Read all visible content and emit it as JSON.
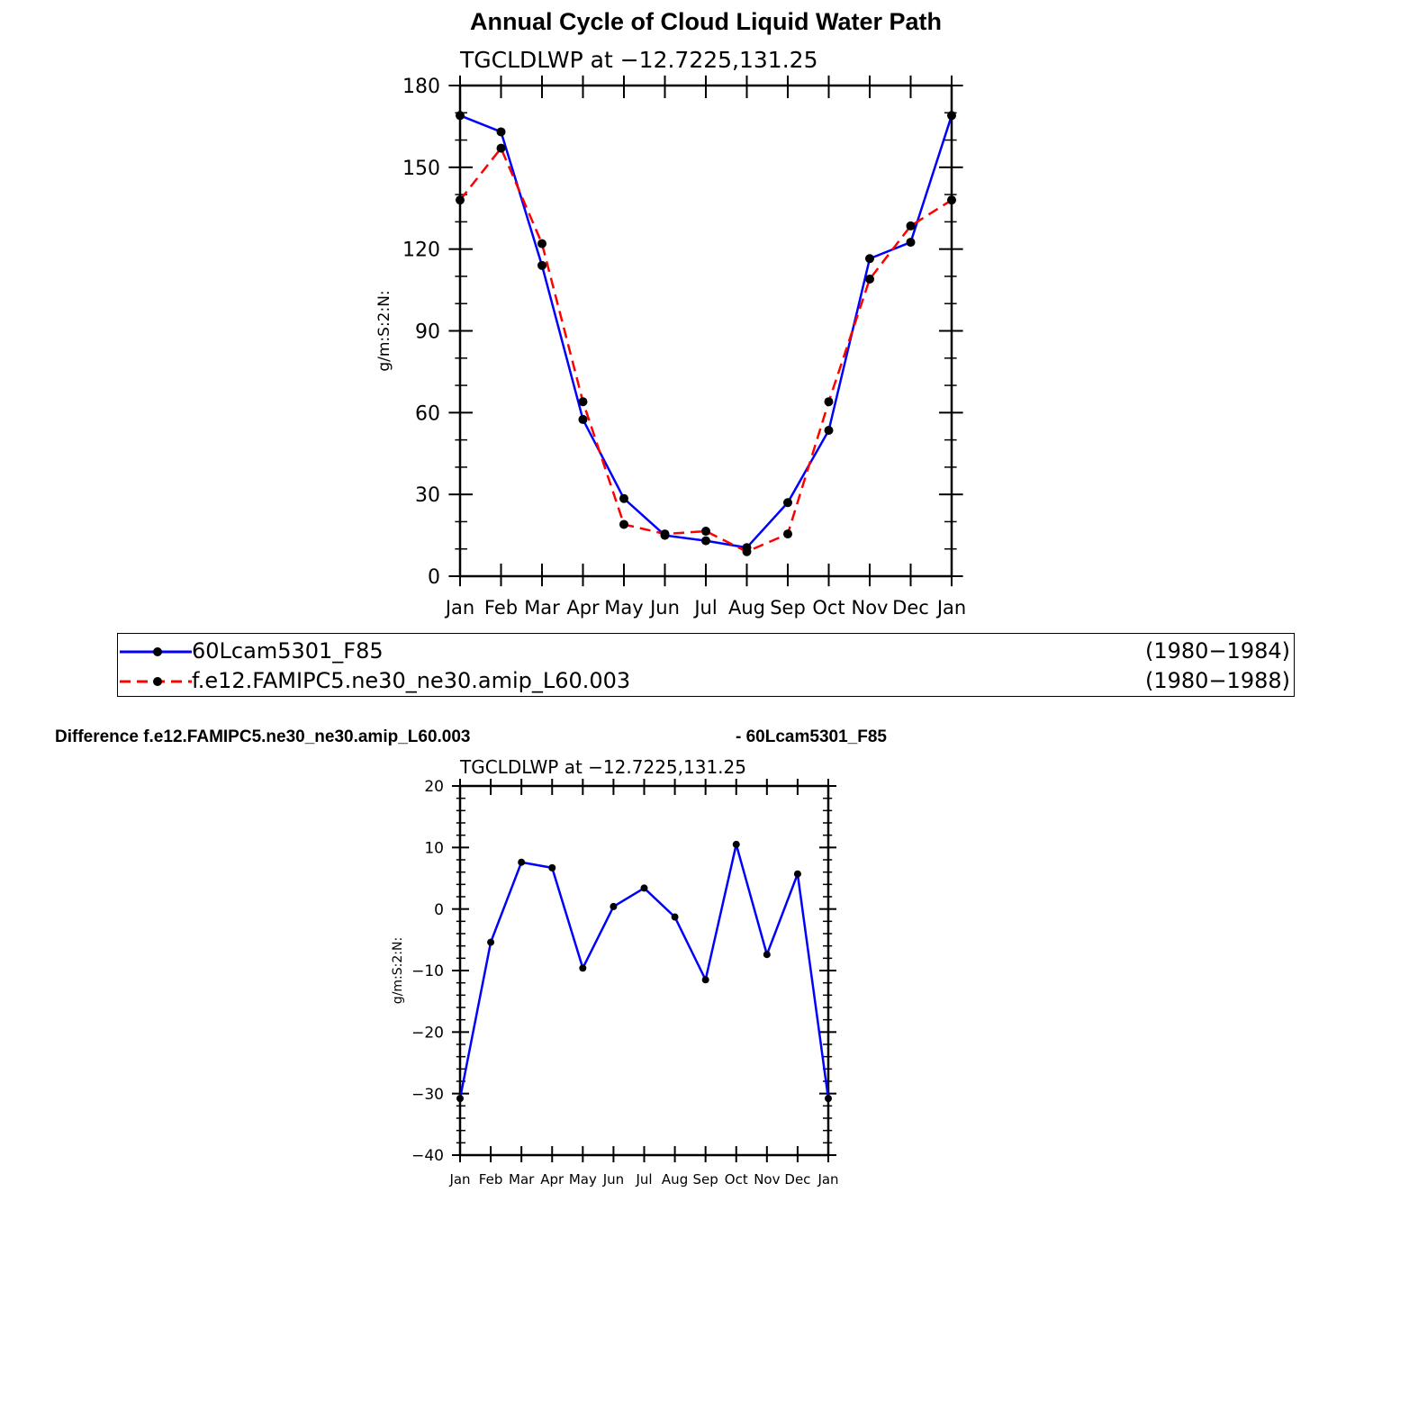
{
  "title": "Annual Cycle of Cloud Liquid Water Path",
  "legend": {
    "items": [
      {
        "label": "60Lcam5301_F85",
        "years": "(1980−1984)",
        "color": "#0000ff",
        "dash": "solid"
      },
      {
        "label": "f.e12.FAMIPC5.ne30_ne30.amip_L60.003",
        "years": "(1980−1988)",
        "color": "#ff0000",
        "dash": "dashed"
      }
    ]
  },
  "diff_title": {
    "left": "Difference f.e12.FAMIPC5.ne30_ne30.amip_L60.003",
    "right": "- 60Lcam5301_F85"
  },
  "chart_data": [
    {
      "type": "line",
      "title": "TGCLDLWP  at  −12.7225,131.25",
      "ylabel": "g/m:S:2:N:",
      "xlabel": "",
      "categories": [
        "Jan",
        "Feb",
        "Mar",
        "Apr",
        "May",
        "Jun",
        "Jul",
        "Aug",
        "Sep",
        "Oct",
        "Nov",
        "Dec",
        "Jan"
      ],
      "ylim": [
        0,
        180
      ],
      "yticks": [
        0,
        30,
        60,
        90,
        120,
        150,
        180
      ],
      "ytick_labels": [
        "0",
        "30",
        "60",
        "90",
        "120",
        "150",
        "180"
      ],
      "minor_step": 10,
      "grid": false,
      "series": [
        {
          "name": "60Lcam5301_F85",
          "color": "#0000ff",
          "dash": "solid",
          "values": [
            169,
            163,
            114,
            57.5,
            28.5,
            15,
            13,
            10.5,
            27,
            53.5,
            116.5,
            122.5,
            169
          ]
        },
        {
          "name": "f.e12.FAMIPC5.ne30_ne30.amip_L60.003",
          "color": "#ff0000",
          "dash": "dashed",
          "values": [
            138,
            157,
            122,
            64,
            19,
            15.5,
            16.5,
            9,
            15.5,
            64,
            109,
            128.5,
            138
          ]
        }
      ]
    },
    {
      "type": "line",
      "title": "TGCLDLWP  at  −12.7225,131.25",
      "ylabel": "g/m:S:2:N:",
      "xlabel": "",
      "categories": [
        "Jan",
        "Feb",
        "Mar",
        "Apr",
        "May",
        "Jun",
        "Jul",
        "Aug",
        "Sep",
        "Oct",
        "Nov",
        "Dec",
        "Jan"
      ],
      "ylim": [
        -40,
        20
      ],
      "yticks": [
        -40,
        -30,
        -20,
        -10,
        0,
        10,
        20
      ],
      "ytick_labels": [
        "−40",
        "−30",
        "−20",
        "−10",
        "0",
        "10",
        "20"
      ],
      "minor_step": 2,
      "grid": false,
      "series": [
        {
          "color": "#0000ff",
          "dash": "solid",
          "values": [
            -30.8,
            -5.4,
            7.6,
            6.7,
            -9.6,
            0.4,
            3.4,
            -1.3,
            -11.5,
            10.5,
            -7.4,
            5.7,
            -30.8
          ]
        }
      ]
    }
  ]
}
